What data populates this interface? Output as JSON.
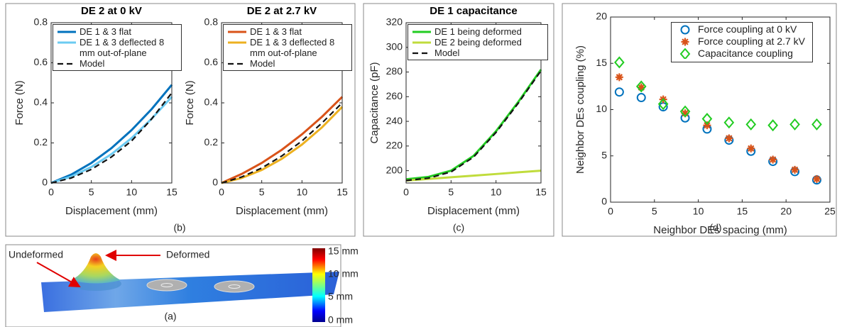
{
  "chart_data": [
    {
      "type": "line",
      "title": "DE 2 at 0 kV",
      "x_label": "Displacement (mm)",
      "y_label": "Force (N)",
      "xlim": [
        0,
        15
      ],
      "ylim": [
        0,
        0.8
      ],
      "xticks": [
        0,
        5,
        10,
        15
      ],
      "yticks": [
        0,
        0.2,
        0.4,
        0.6,
        0.8
      ],
      "legend": "upper left",
      "x": [
        0,
        2.5,
        5,
        7.5,
        10,
        12.5,
        15
      ],
      "series": [
        {
          "name": "DE 1 & 3 flat",
          "color": "#0072BD",
          "values": [
            0,
            0.042,
            0.1,
            0.174,
            0.264,
            0.369,
            0.49
          ]
        },
        {
          "name": "DE 1 & 3 deflected 8 mm out-of-plane",
          "color": "#6CCBF2",
          "values": [
            0,
            0.032,
            0.08,
            0.144,
            0.224,
            0.321,
            0.43
          ]
        },
        {
          "name": "Model",
          "color": "#111111",
          "dashed": true,
          "values": [
            0,
            0.025,
            0.068,
            0.13,
            0.21,
            0.32,
            0.45
          ]
        }
      ]
    },
    {
      "type": "line",
      "title": "DE 2 at 2.7 kV",
      "x_label": "Displacement (mm)",
      "y_label": "Force (N)",
      "xlim": [
        0,
        15
      ],
      "ylim": [
        0,
        0.8
      ],
      "xticks": [
        0,
        5,
        10,
        15
      ],
      "yticks": [
        0,
        0.2,
        0.4,
        0.6,
        0.8
      ],
      "legend": "upper left",
      "x": [
        0,
        2.5,
        5,
        7.5,
        10,
        12.5,
        15
      ],
      "series": [
        {
          "name": "DE 1 & 3 flat",
          "color": "#D95319",
          "values": [
            0,
            0.045,
            0.1,
            0.166,
            0.243,
            0.331,
            0.43
          ]
        },
        {
          "name": "DE 1 & 3 deflected 8 mm out-of-plane",
          "color": "#EDB120",
          "values": [
            0,
            0.025,
            0.065,
            0.121,
            0.192,
            0.278,
            0.38
          ]
        },
        {
          "name": "Model",
          "color": "#111111",
          "dashed": true,
          "values": [
            0,
            0.03,
            0.075,
            0.135,
            0.21,
            0.3,
            0.4
          ]
        }
      ]
    },
    {
      "type": "line",
      "title": "DE 1 capacitance",
      "x_label": "Displacement (mm)",
      "y_label": "Capacitance (pF)",
      "xlim": [
        0,
        15
      ],
      "ylim": [
        190,
        320
      ],
      "xticks": [
        0,
        5,
        10,
        15
      ],
      "yticks": [
        200,
        220,
        240,
        260,
        280,
        300,
        320
      ],
      "legend": "upper left",
      "x": [
        0,
        2.5,
        5,
        7.5,
        10,
        12.5,
        15
      ],
      "series": [
        {
          "name": "DE 1 being deformed",
          "color": "#22CC22",
          "values": [
            193,
            195,
            200,
            212,
            232,
            256,
            282
          ]
        },
        {
          "name": "DE 2 being deformed",
          "color": "#C0DC3C",
          "values": [
            192,
            193.3,
            194.7,
            196,
            197.3,
            198.7,
            200
          ]
        },
        {
          "name": "Model",
          "color": "#111111",
          "dashed": true,
          "values": [
            192,
            194,
            199,
            211,
            231,
            255,
            281
          ]
        }
      ]
    },
    {
      "type": "scatter",
      "x_label": "Neighbor DEs spacing (mm)",
      "y_label": "Neighbor DEs coupling (%)",
      "xlim": [
        0,
        25
      ],
      "ylim": [
        0,
        20
      ],
      "xticks": [
        0,
        5,
        10,
        15,
        20,
        25
      ],
      "yticks": [
        0,
        5,
        10,
        15,
        20
      ],
      "legend": "upper right",
      "x": [
        1,
        3.5,
        6,
        8.5,
        11,
        13.5,
        16,
        18.5,
        21,
        23.5
      ],
      "series": [
        {
          "name": "Force coupling at 0 kV",
          "color": "#0072BD",
          "marker": "circle",
          "values": [
            11.9,
            11.3,
            10.3,
            9.1,
            7.9,
            6.7,
            5.5,
            4.4,
            3.3,
            2.4
          ]
        },
        {
          "name": "Force coupling at 2.7 kV",
          "color": "#D95319",
          "marker": "star",
          "values": [
            13.5,
            12.4,
            11.1,
            9.6,
            8.3,
            6.9,
            5.8,
            4.6,
            3.5,
            2.5
          ]
        },
        {
          "name": "Capacitance coupling",
          "color": "#22CC22",
          "marker": "diamond",
          "values": [
            15.1,
            12.5,
            10.6,
            9.8,
            9.0,
            8.6,
            8.4,
            8.3,
            8.4,
            8.4
          ]
        }
      ]
    }
  ],
  "panel_labels": {
    "a": "(a)",
    "b": "(b)",
    "c": "(c)",
    "d": "(d)"
  },
  "panel_a": {
    "undeformed": "Undeformed",
    "deformed": "Deformed",
    "colorbar_labels": [
      "15 mm",
      "10 mm",
      "5 mm",
      "0 mm"
    ]
  }
}
